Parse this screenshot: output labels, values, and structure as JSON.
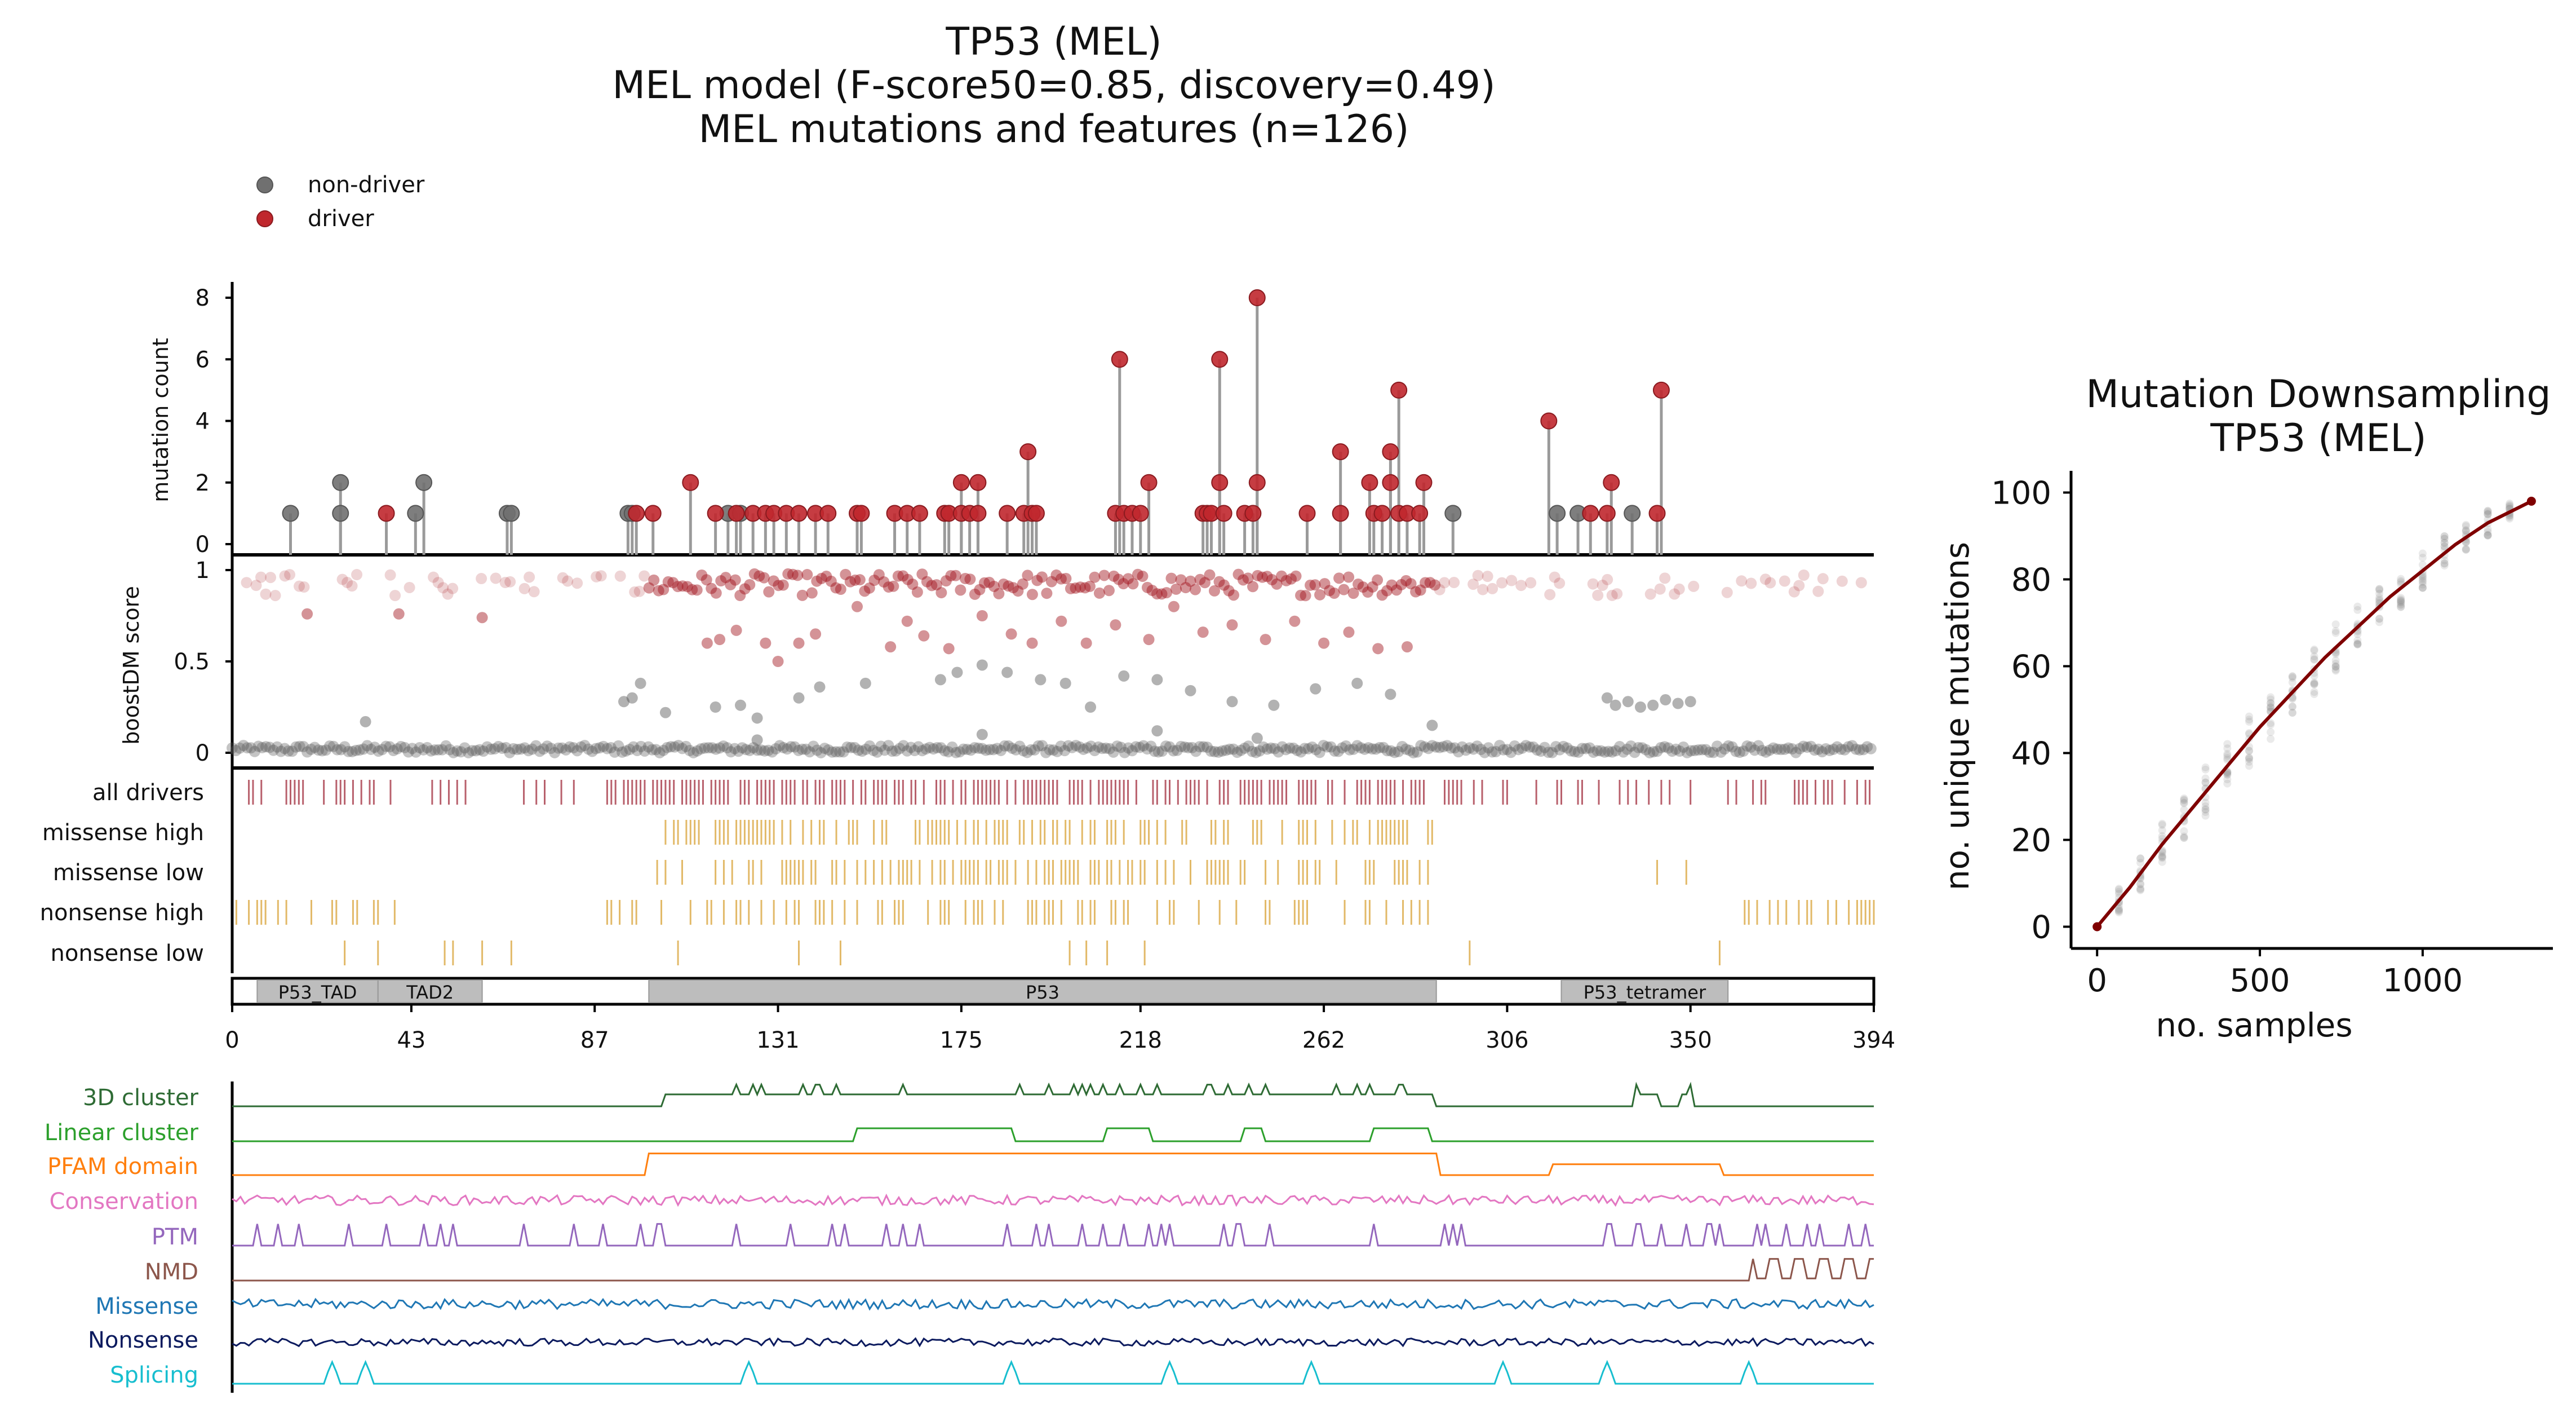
{
  "chart_data": [
    {
      "type": "lollipop",
      "title_lines": [
        "TP53 (MEL)",
        "MEL model (F-score50=0.85, discovery=0.49)",
        "MEL mutations and features (n=126)"
      ],
      "ylabel": "mutation count",
      "ylim": [
        0,
        8
      ],
      "yticks": [
        0,
        2,
        4,
        6,
        8
      ],
      "legend": {
        "placement": "top-left",
        "entries": [
          {
            "label": "non-driver",
            "color": "#707070"
          },
          {
            "label": "driver",
            "color": "#c0272d"
          }
        ]
      },
      "nondriver_points": [
        [
          14,
          1
        ],
        [
          26,
          1
        ],
        [
          26,
          2
        ],
        [
          44,
          1
        ],
        [
          46,
          2
        ],
        [
          66,
          1
        ],
        [
          67,
          1
        ],
        [
          95,
          1
        ],
        [
          96,
          1
        ],
        [
          119,
          1
        ],
        [
          122,
          1
        ],
        [
          293,
          1
        ],
        [
          318,
          1
        ],
        [
          323,
          1
        ],
        [
          336,
          1
        ]
      ],
      "driver_points": [
        [
          37,
          1
        ],
        [
          97,
          1
        ],
        [
          101,
          1
        ],
        [
          110,
          2
        ],
        [
          116,
          1
        ],
        [
          121,
          1
        ],
        [
          125,
          1
        ],
        [
          128,
          1
        ],
        [
          130,
          1
        ],
        [
          133,
          1
        ],
        [
          136,
          1
        ],
        [
          140,
          1
        ],
        [
          143,
          1
        ],
        [
          150,
          1
        ],
        [
          151,
          1
        ],
        [
          159,
          1
        ],
        [
          162,
          1
        ],
        [
          165,
          1
        ],
        [
          171,
          1
        ],
        [
          172,
          1
        ],
        [
          175,
          1
        ],
        [
          175,
          2
        ],
        [
          177,
          1
        ],
        [
          179,
          1
        ],
        [
          179,
          2
        ],
        [
          186,
          1
        ],
        [
          190,
          1
        ],
        [
          191,
          3
        ],
        [
          192,
          1
        ],
        [
          193,
          1
        ],
        [
          212,
          1
        ],
        [
          213,
          6
        ],
        [
          214,
          1
        ],
        [
          216,
          1
        ],
        [
          218,
          1
        ],
        [
          220,
          2
        ],
        [
          233,
          1
        ],
        [
          234,
          1
        ],
        [
          235,
          1
        ],
        [
          237,
          6
        ],
        [
          237,
          2
        ],
        [
          238,
          1
        ],
        [
          243,
          1
        ],
        [
          245,
          1
        ],
        [
          246,
          8
        ],
        [
          246,
          2
        ],
        [
          258,
          1
        ],
        [
          266,
          3
        ],
        [
          266,
          1
        ],
        [
          273,
          2
        ],
        [
          274,
          1
        ],
        [
          276,
          1
        ],
        [
          278,
          2
        ],
        [
          278,
          3
        ],
        [
          280,
          5
        ],
        [
          280,
          1
        ],
        [
          282,
          1
        ],
        [
          285,
          1
        ],
        [
          286,
          2
        ],
        [
          316,
          4
        ],
        [
          326,
          1
        ],
        [
          330,
          1
        ],
        [
          331,
          2
        ],
        [
          342,
          1
        ],
        [
          343,
          5
        ]
      ]
    },
    {
      "type": "scatter",
      "ylabel": "boostDM score",
      "ylim": [
        0,
        1
      ],
      "yticks": [
        "0",
        "0.5",
        "1"
      ],
      "mid_band_driver_points": [
        [
          114,
          0.6
        ],
        [
          117,
          0.62
        ],
        [
          121,
          0.67
        ],
        [
          128,
          0.6
        ],
        [
          131,
          0.5
        ],
        [
          136,
          0.6
        ],
        [
          140,
          0.65
        ],
        [
          150,
          0.8
        ],
        [
          158,
          0.58
        ],
        [
          162,
          0.72
        ],
        [
          166,
          0.64
        ],
        [
          172,
          0.57
        ],
        [
          180,
          0.75
        ],
        [
          187,
          0.65
        ],
        [
          192,
          0.6
        ],
        [
          199,
          0.72
        ],
        [
          205,
          0.6
        ],
        [
          212,
          0.7
        ],
        [
          220,
          0.62
        ],
        [
          226,
          0.8
        ],
        [
          233,
          0.66
        ],
        [
          240,
          0.7
        ],
        [
          248,
          0.62
        ],
        [
          255,
          0.72
        ],
        [
          262,
          0.6
        ],
        [
          268,
          0.66
        ],
        [
          275,
          0.57
        ],
        [
          282,
          0.58
        ],
        [
          60,
          0.74
        ],
        [
          40,
          0.76
        ],
        [
          18,
          0.76
        ]
      ],
      "mid_band_nondriver_points": [
        [
          32,
          0.17
        ],
        [
          94,
          0.28
        ],
        [
          96,
          0.3
        ],
        [
          98,
          0.38
        ],
        [
          104,
          0.22
        ],
        [
          116,
          0.25
        ],
        [
          122,
          0.26
        ],
        [
          126,
          0.19
        ],
        [
          136,
          0.3
        ],
        [
          141,
          0.36
        ],
        [
          152,
          0.38
        ],
        [
          170,
          0.4
        ],
        [
          174,
          0.44
        ],
        [
          180,
          0.48
        ],
        [
          186,
          0.44
        ],
        [
          194,
          0.4
        ],
        [
          200,
          0.38
        ],
        [
          206,
          0.25
        ],
        [
          214,
          0.42
        ],
        [
          222,
          0.4
        ],
        [
          230,
          0.34
        ],
        [
          240,
          0.28
        ],
        [
          250,
          0.26
        ],
        [
          260,
          0.35
        ],
        [
          270,
          0.38
        ],
        [
          278,
          0.32
        ],
        [
          288,
          0.15
        ],
        [
          330,
          0.3
        ],
        [
          332,
          0.26
        ],
        [
          335,
          0.28
        ],
        [
          338,
          0.25
        ],
        [
          341,
          0.26
        ],
        [
          344,
          0.29
        ],
        [
          347,
          0.27
        ],
        [
          350,
          0.28
        ],
        [
          126,
          0.07
        ],
        [
          180,
          0.1
        ],
        [
          222,
          0.12
        ],
        [
          246,
          0.08
        ]
      ]
    },
    {
      "type": "track",
      "rows": [
        {
          "label": "all drivers",
          "color": "#b8606c"
        },
        {
          "label": "missense high",
          "color": "#e2b968"
        },
        {
          "label": "missense low",
          "color": "#e2b968"
        },
        {
          "label": "nonsense high",
          "color": "#e2b968"
        },
        {
          "label": "nonsense low",
          "color": "#e2b968"
        }
      ],
      "domains": [
        {
          "label": "P53_TAD",
          "start": 6,
          "end": 35
        },
        {
          "label": "TAD2",
          "start": 35,
          "end": 60
        },
        {
          "label": "P53",
          "start": 100,
          "end": 289
        },
        {
          "label": "P53_tetramer",
          "start": 319,
          "end": 359
        }
      ],
      "xlim": [
        0,
        394
      ],
      "xticks": [
        0,
        43,
        87,
        131,
        175,
        218,
        262,
        306,
        350,
        394
      ]
    },
    {
      "type": "line",
      "series": [
        {
          "name": "3D cluster",
          "color": "#2e6b34"
        },
        {
          "name": "Linear cluster",
          "color": "#2ca02c"
        },
        {
          "name": "PFAM domain",
          "color": "#ff7f0e"
        },
        {
          "name": "Conservation",
          "color": "#e377c2"
        },
        {
          "name": "PTM",
          "color": "#9467bd"
        },
        {
          "name": "NMD",
          "color": "#8c564b"
        },
        {
          "name": "Missense",
          "color": "#1f77b4"
        },
        {
          "name": "Nonsense",
          "color": "#0b1a5e"
        },
        {
          "name": "Splicing",
          "color": "#17becf"
        }
      ],
      "pfam_segments": [
        [
          100,
          289,
          1
        ],
        [
          317,
          357,
          0.5
        ]
      ],
      "linear_cluster_segments": [
        [
          150,
          187
        ],
        [
          210,
          220
        ],
        [
          243,
          247
        ],
        [
          274,
          287
        ]
      ],
      "cluster3d_segments": [
        [
          104,
          288
        ],
        [
          337,
          342
        ],
        [
          348,
          350
        ]
      ],
      "nmd_start": 365,
      "splicing_peaks": [
        24,
        32,
        124,
        187,
        225,
        259,
        305,
        330,
        364
      ]
    },
    {
      "type": "scatter",
      "title_lines": [
        "Mutation Downsampling",
        "TP53 (MEL)"
      ],
      "xlabel": "no. samples",
      "ylabel": "no. unique mutations",
      "xlim": [
        -80,
        1400
      ],
      "ylim": [
        -5,
        105
      ],
      "xticks": [
        0,
        500,
        1000
      ],
      "yticks": [
        0,
        20,
        40,
        60,
        80,
        100
      ],
      "curve": {
        "color": "#7f0000",
        "x": [
          0,
          100,
          200,
          300,
          400,
          500,
          600,
          700,
          800,
          900,
          1000,
          1100,
          1200,
          1334
        ],
        "y": [
          0,
          9,
          19,
          28,
          37,
          46,
          54,
          62,
          69,
          76,
          82,
          88,
          93,
          98
        ]
      },
      "sample_x": [
        67,
        133,
        200,
        267,
        333,
        400,
        467,
        533,
        600,
        667,
        733,
        800,
        867,
        933,
        1000,
        1067,
        1133,
        1200,
        1267,
        1334
      ],
      "spread": [
        3,
        4,
        5,
        5,
        6,
        6,
        6,
        6,
        6,
        6,
        6,
        5,
        5,
        5,
        4,
        4,
        3,
        3,
        2,
        0
      ]
    }
  ]
}
